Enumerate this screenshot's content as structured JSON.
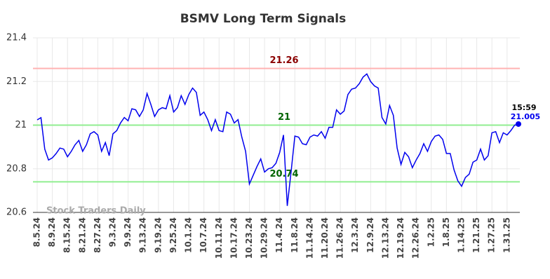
{
  "chart_data": {
    "type": "line",
    "title": "BSMV Long Term Signals",
    "watermark": "Stock Traders Daily",
    "color": "#0000ee",
    "categories": [
      "8.5.24",
      null,
      null,
      null,
      "8.9.24",
      null,
      null,
      null,
      "8.15.24",
      null,
      null,
      null,
      "8.21.24",
      null,
      null,
      null,
      "8.27.24",
      null,
      null,
      null,
      "9.3.24",
      null,
      null,
      null,
      "9.9.24",
      null,
      null,
      null,
      "9.13.24",
      null,
      null,
      null,
      "9.19.24",
      null,
      null,
      null,
      "9.25.24",
      null,
      null,
      null,
      "10.1.24",
      null,
      null,
      null,
      "10.7.24",
      null,
      null,
      null,
      "10.11.24",
      null,
      null,
      null,
      "10.17.24",
      null,
      null,
      null,
      "10.23.24",
      null,
      null,
      null,
      "10.29.24",
      null,
      null,
      null,
      "11.4.24",
      null,
      null,
      null,
      "11.8.24",
      null,
      null,
      null,
      "11.14.24",
      null,
      null,
      null,
      "11.20.24",
      null,
      null,
      null,
      "11.26.24",
      null,
      null,
      null,
      "12.3.24",
      null,
      null,
      null,
      "12.9.24",
      null,
      null,
      null,
      "12.13.24",
      null,
      null,
      null,
      "12.19.24",
      null,
      null,
      null,
      "12.26.24",
      null,
      null,
      null,
      "1.2.25",
      null,
      null,
      null,
      "1.8.25",
      null,
      null,
      null,
      "1.14.25",
      null,
      null,
      null,
      "1.21.25",
      null,
      null,
      null,
      "1.27.25",
      null,
      null,
      null,
      "1.31.25",
      null,
      null,
      null
    ],
    "values": [
      21.024,
      21.034,
      20.89,
      20.84,
      20.85,
      20.87,
      20.895,
      20.89,
      20.855,
      20.88,
      20.91,
      20.93,
      20.88,
      20.91,
      20.96,
      20.97,
      20.955,
      20.88,
      20.92,
      20.86,
      20.96,
      20.975,
      21.01,
      21.035,
      21.02,
      21.075,
      21.07,
      21.04,
      21.07,
      21.145,
      21.095,
      21.04,
      21.07,
      21.08,
      21.075,
      21.135,
      21.06,
      21.08,
      21.135,
      21.095,
      21.14,
      21.17,
      21.15,
      21.045,
      21.06,
      21.025,
      20.975,
      21.025,
      20.975,
      20.97,
      21.06,
      21.05,
      21.01,
      21.025,
      20.945,
      20.88,
      20.73,
      20.77,
      20.81,
      20.845,
      20.785,
      20.8,
      20.805,
      20.825,
      20.875,
      20.955,
      20.63,
      20.785,
      20.95,
      20.945,
      20.915,
      20.91,
      20.945,
      20.955,
      20.95,
      20.97,
      20.94,
      20.99,
      20.99,
      21.07,
      21.05,
      21.065,
      21.14,
      21.165,
      21.17,
      21.19,
      21.22,
      21.235,
      21.2,
      21.18,
      21.17,
      21.035,
      21.005,
      21.09,
      21.045,
      20.895,
      20.82,
      20.875,
      20.855,
      20.805,
      20.84,
      20.87,
      20.915,
      20.88,
      20.925,
      20.95,
      20.955,
      20.935,
      20.87,
      20.87,
      20.795,
      20.745,
      20.72,
      20.76,
      20.775,
      20.83,
      20.84,
      20.89,
      20.84,
      20.86,
      20.965,
      20.97,
      20.92,
      20.965,
      20.955,
      20.975,
      21.0,
      21.005
    ],
    "ylim": [
      20.6,
      21.4
    ],
    "yticks": [
      20.6,
      20.8,
      21,
      21.2,
      21.4
    ],
    "grid": true,
    "hlines": [
      {
        "value": 21.26,
        "color": "#ffb3b3",
        "label_color": "#8b0000"
      },
      {
        "value": 21,
        "color": "#90ee90",
        "label_color": "#006400"
      },
      {
        "value": 20.74,
        "color": "#90ee90",
        "label_color": "#006400"
      }
    ],
    "last_label": {
      "time": "15:59",
      "value": 21.005
    }
  }
}
